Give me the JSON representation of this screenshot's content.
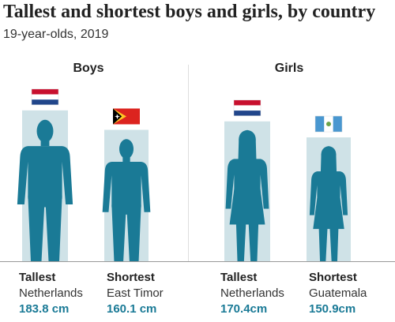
{
  "chart_data": {
    "type": "bar",
    "title": "Tallest and shortest boys and girls, by country",
    "subtitle": "19-year-olds, 2019",
    "panels": [
      {
        "label": "Boys",
        "items": [
          {
            "rank": "Tallest",
            "country": "Netherlands",
            "value": 183.8,
            "value_label": "183.8 cm",
            "flag": "netherlands-flag"
          },
          {
            "rank": "Shortest",
            "country": "East Timor",
            "value": 160.1,
            "value_label": "160.1 cm",
            "flag": "east-timor-flag"
          }
        ]
      },
      {
        "label": "Girls",
        "items": [
          {
            "rank": "Tallest",
            "country": "Netherlands",
            "value": 170.4,
            "value_label": "170.4cm",
            "flag": "netherlands-flag"
          },
          {
            "rank": "Shortest",
            "country": "Guatemala",
            "value": 150.9,
            "value_label": "150.9cm",
            "flag": "guatemala-flag"
          }
        ]
      }
    ],
    "colors": {
      "figure": "#1a7a96",
      "bar": "#cfe2e7",
      "value_text": "#1a7a96",
      "flag_red": "#c8102e",
      "flag_blue": "#21468b",
      "flag_timor_yellow": "#ffc726",
      "flag_guatemala_blue": "#4997d0"
    }
  }
}
